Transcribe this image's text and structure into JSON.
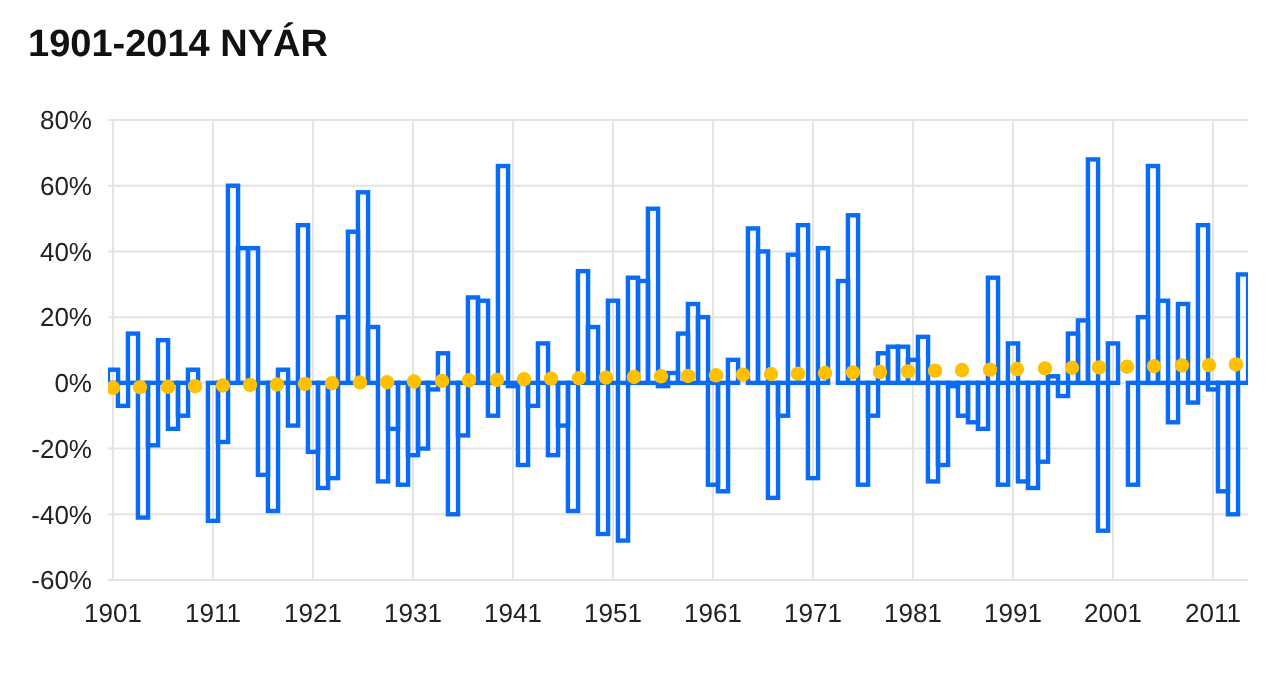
{
  "chart_data": {
    "type": "bar",
    "title": "1901-2014 NYÁR",
    "x": [
      1901,
      1902,
      1903,
      1904,
      1905,
      1906,
      1907,
      1908,
      1909,
      1910,
      1911,
      1912,
      1913,
      1914,
      1915,
      1916,
      1917,
      1918,
      1919,
      1920,
      1921,
      1922,
      1923,
      1924,
      1925,
      1926,
      1927,
      1928,
      1929,
      1930,
      1931,
      1932,
      1933,
      1934,
      1935,
      1936,
      1937,
      1938,
      1939,
      1940,
      1941,
      1942,
      1943,
      1944,
      1945,
      1946,
      1947,
      1948,
      1949,
      1950,
      1951,
      1952,
      1953,
      1954,
      1955,
      1956,
      1957,
      1958,
      1959,
      1960,
      1961,
      1962,
      1963,
      1964,
      1965,
      1966,
      1967,
      1968,
      1969,
      1970,
      1971,
      1972,
      1973,
      1974,
      1975,
      1976,
      1977,
      1978,
      1979,
      1980,
      1981,
      1982,
      1983,
      1984,
      1985,
      1986,
      1987,
      1988,
      1989,
      1990,
      1991,
      1992,
      1993,
      1994,
      1995,
      1996,
      1997,
      1998,
      1999,
      2000,
      2001,
      2002,
      2003,
      2004,
      2005,
      2006,
      2007,
      2008,
      2009,
      2010,
      2011,
      2012,
      2013,
      2014
    ],
    "series": [
      {
        "color": "#0a6cf5",
        "values": [
          4,
          -7,
          15,
          -41,
          -19,
          13,
          -14,
          -10,
          4,
          0,
          -42,
          -18,
          60,
          41,
          41,
          -28,
          -39,
          4,
          -13,
          48,
          -21,
          -32,
          -29,
          20,
          46,
          58,
          17,
          -30,
          -14,
          -31,
          -22,
          -20,
          -2,
          9,
          -40,
          -16,
          26,
          25,
          -10,
          66,
          -1,
          -25,
          -7,
          12,
          -22,
          -13,
          -39,
          34,
          17,
          -46,
          25,
          -48,
          32,
          31,
          53,
          -1,
          3,
          15,
          24,
          20,
          -31,
          -33,
          7,
          0,
          47,
          40,
          -35,
          -10,
          39,
          48,
          -29,
          41,
          0,
          31,
          51,
          -31,
          -10,
          9,
          11,
          11,
          7,
          14,
          -30,
          -25,
          -1,
          -10,
          -12,
          -14,
          32,
          -31,
          12,
          -30,
          -32,
          -24,
          2,
          -4,
          15,
          19,
          68,
          -45,
          12,
          0,
          -31,
          20,
          66,
          25,
          -12,
          24,
          -6,
          48,
          -2,
          -33,
          -40,
          33
        ]
      },
      {
        "type": "scatter",
        "color": "#ffc000",
        "x": [
          1901.0,
          1903.7,
          1906.5,
          1909.2,
          1912.0,
          1914.7,
          1917.4,
          1920.2,
          1922.9,
          1925.7,
          1928.4,
          1931.1,
          1933.9,
          1936.6,
          1939.4,
          1942.1,
          1944.8,
          1947.6,
          1950.3,
          1953.1,
          1955.8,
          1958.5,
          1961.3,
          1964.0,
          1966.8,
          1969.5,
          1972.2,
          1975.0,
          1977.7,
          1980.5,
          1983.2,
          1985.9,
          1988.7,
          1991.4,
          1994.2,
          1996.9,
          1999.6,
          2002.4,
          2005.1,
          2007.9,
          2010.6,
          2013.3
        ],
        "values": [
          -1.5,
          -1.3,
          -1.2,
          -1.0,
          -0.8,
          -0.6,
          -0.5,
          -0.3,
          -0.1,
          0.1,
          0.2,
          0.4,
          0.6,
          0.8,
          0.9,
          1.1,
          1.3,
          1.4,
          1.6,
          1.8,
          2.0,
          2.1,
          2.3,
          2.5,
          2.7,
          2.8,
          3.0,
          3.2,
          3.3,
          3.5,
          3.7,
          3.9,
          4.0,
          4.2,
          4.4,
          4.6,
          4.7,
          4.9,
          5.1,
          5.3,
          5.4,
          5.6
        ]
      }
    ],
    "xlim": [
      1900.5,
      2014.5
    ],
    "xticks": [
      1901,
      1911,
      1921,
      1931,
      1941,
      1951,
      1961,
      1971,
      1981,
      1991,
      2001,
      2011
    ],
    "ylim": [
      -60,
      80
    ],
    "yticks": [
      {
        "value": -60,
        "label": "-60%"
      },
      {
        "value": -40,
        "label": "-40%"
      },
      {
        "value": -20,
        "label": "-20%"
      },
      {
        "value": 0,
        "label": "0%"
      },
      {
        "value": 20,
        "label": "20%"
      },
      {
        "value": 40,
        "label": "40%"
      },
      {
        "value": 60,
        "label": "60%"
      },
      {
        "value": 80,
        "label": "80%"
      }
    ],
    "grid": true,
    "marker": "circle"
  }
}
